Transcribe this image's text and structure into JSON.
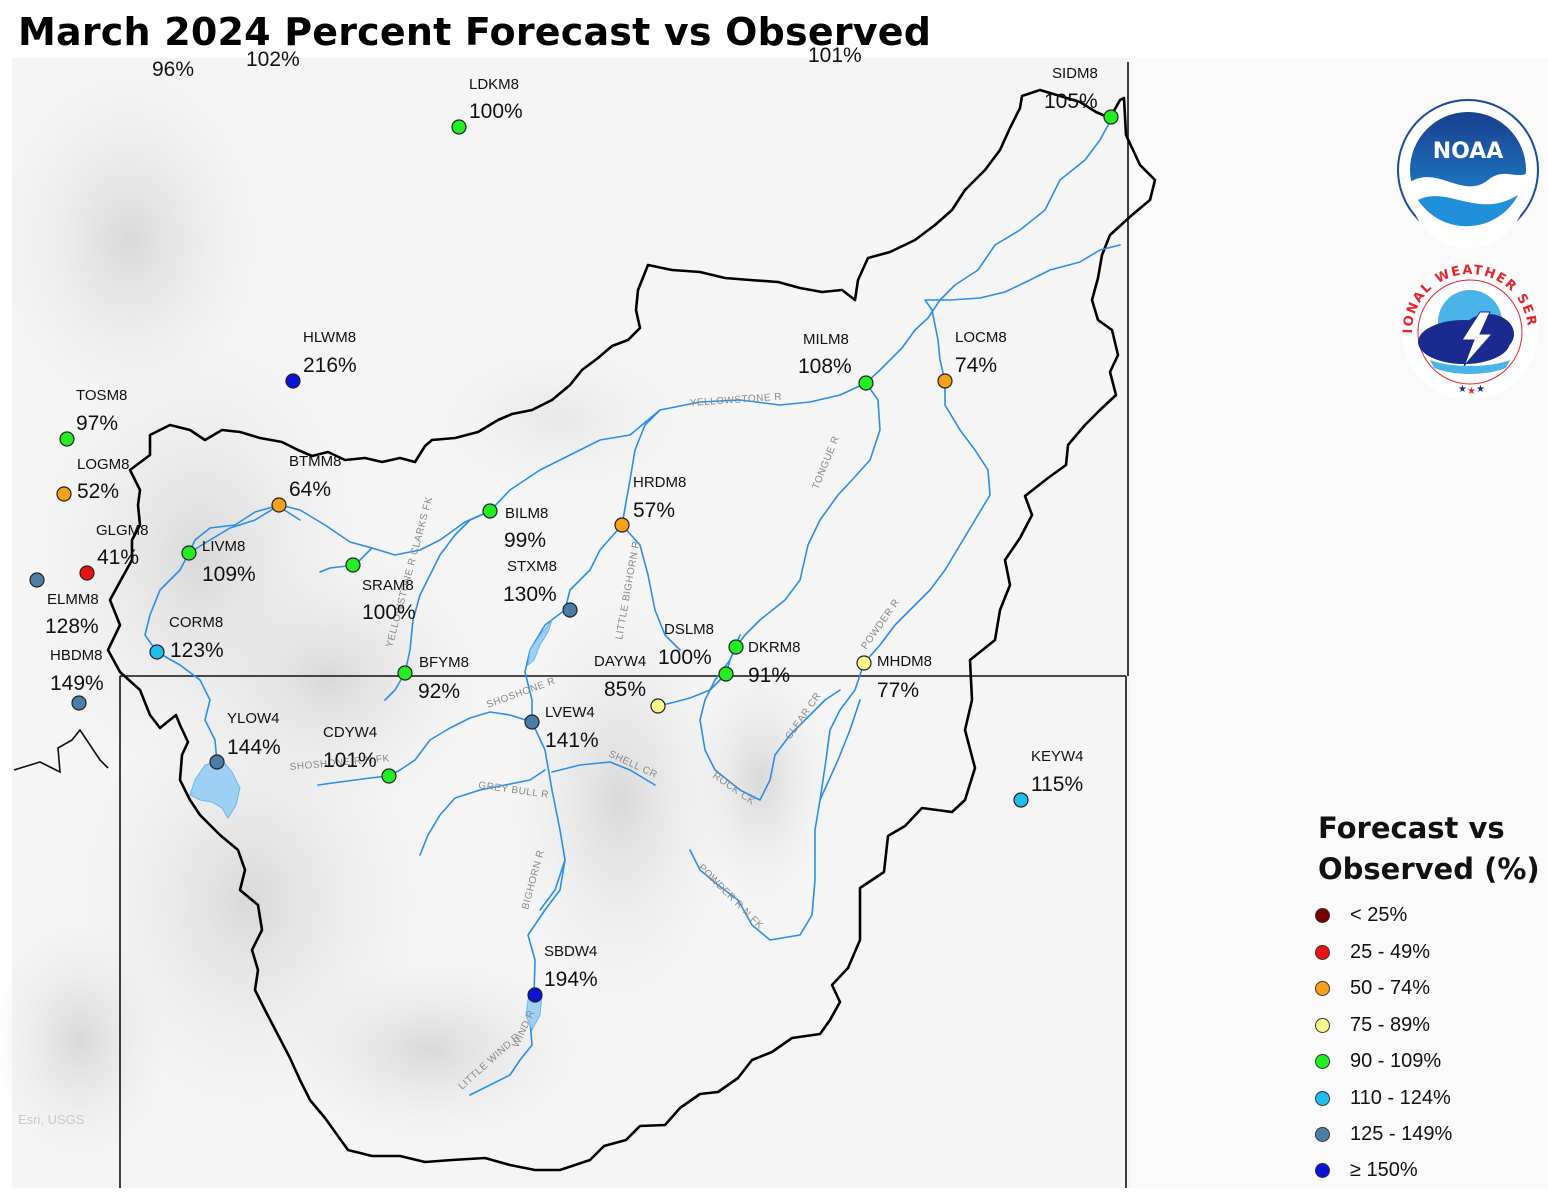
{
  "title": "March 2024 Percent Forecast vs Observed",
  "attribution": "Esri, USGS",
  "logos": {
    "noaa": "NOAA",
    "nws": "NATIONAL WEATHER SERVICE"
  },
  "colors": {
    "lt25": "#7a0000",
    "c25_49": "#ee1111",
    "c50_74": "#f7a11a",
    "c75_89": "#fafa8c",
    "c90_109": "#22ee22",
    "c110_124": "#22bbee",
    "c125_149": "#4a7ea8",
    "ge150": "#0a14d8",
    "river": "#2a8ee8",
    "basin": "#000000"
  },
  "legend": {
    "title_line1": "Forecast vs",
    "title_line2": "Observed (%)",
    "items": [
      {
        "label": "< 25%",
        "color": "#7a0000"
      },
      {
        "label": "25 - 49%",
        "color": "#ee1111"
      },
      {
        "label": "50 - 74%",
        "color": "#f7a11a"
      },
      {
        "label": "75 - 89%",
        "color": "#fafa8c"
      },
      {
        "label": "90 - 109%",
        "color": "#22ee22"
      },
      {
        "label": "110 - 124%",
        "color": "#22bbee"
      },
      {
        "label": "125 - 149%",
        "color": "#4a7ea8"
      },
      {
        "label": "≥ 150%",
        "color": "#0a14d8"
      }
    ]
  },
  "partial_labels": [
    "96%",
    "102%",
    "101%"
  ],
  "stations": [
    {
      "id": "LDKM8",
      "pct": "100%",
      "class": "c90_109"
    },
    {
      "id": "SIDM8",
      "pct": "105%",
      "class": "c90_109"
    },
    {
      "id": "HLWM8",
      "pct": "216%",
      "class": "ge150"
    },
    {
      "id": "TOSM8",
      "pct": "97%",
      "class": "c90_109"
    },
    {
      "id": "LOGM8",
      "pct": "52%",
      "class": "c50_74"
    },
    {
      "id": "GLGM8",
      "pct": "41%",
      "class": "c25_49"
    },
    {
      "id": "ELMM8",
      "pct": "128%",
      "class": "c125_149"
    },
    {
      "id": "HBDM8",
      "pct": "149%",
      "class": "c125_149"
    },
    {
      "id": "BTMM8",
      "pct": "64%",
      "class": "c50_74"
    },
    {
      "id": "LIVM8",
      "pct": "109%",
      "class": "c90_109"
    },
    {
      "id": "CORM8",
      "pct": "123%",
      "class": "c110_124"
    },
    {
      "id": "SRAM8",
      "pct": "100%",
      "class": "c90_109"
    },
    {
      "id": "BILM8",
      "pct": "99%",
      "class": "c90_109"
    },
    {
      "id": "HRDM8",
      "pct": "57%",
      "class": "c50_74"
    },
    {
      "id": "STXM8",
      "pct": "130%",
      "class": "c125_149"
    },
    {
      "id": "MILM8",
      "pct": "108%",
      "class": "c90_109"
    },
    {
      "id": "LOCM8",
      "pct": "74%",
      "class": "c50_74"
    },
    {
      "id": "DSLM8",
      "pct": "100%",
      "class": "c90_109"
    },
    {
      "id": "DKRM8",
      "pct": "91%",
      "class": "c90_109"
    },
    {
      "id": "DAYW4",
      "pct": "85%",
      "class": "c75_89"
    },
    {
      "id": "MHDM8",
      "pct": "77%",
      "class": "c75_89"
    },
    {
      "id": "BFYM8",
      "pct": "92%",
      "class": "c90_109"
    },
    {
      "id": "YLOW4",
      "pct": "144%",
      "class": "c125_149"
    },
    {
      "id": "CDYW4",
      "pct": "101%",
      "class": "c90_109"
    },
    {
      "id": "LVEW4",
      "pct": "141%",
      "class": "c125_149"
    },
    {
      "id": "KEYW4",
      "pct": "115%",
      "class": "c110_124"
    },
    {
      "id": "SBDW4",
      "pct": "194%",
      "class": "ge150"
    }
  ],
  "rivers": [
    "YELLOWSTONE R",
    "TONGUE R",
    "POWDER R",
    "BIGHORN R",
    "LITTLE BIGHORN R",
    "SHOSHONE R",
    "GREY BULL R",
    "SHELL CR",
    "ROCK CK",
    "CLEAR CR",
    "POWDER R N FK",
    "WIND R",
    "LITTLE WIND R",
    "YELLOWSTONE R CLARKS FK",
    "SHOSHONE R N FK"
  ]
}
